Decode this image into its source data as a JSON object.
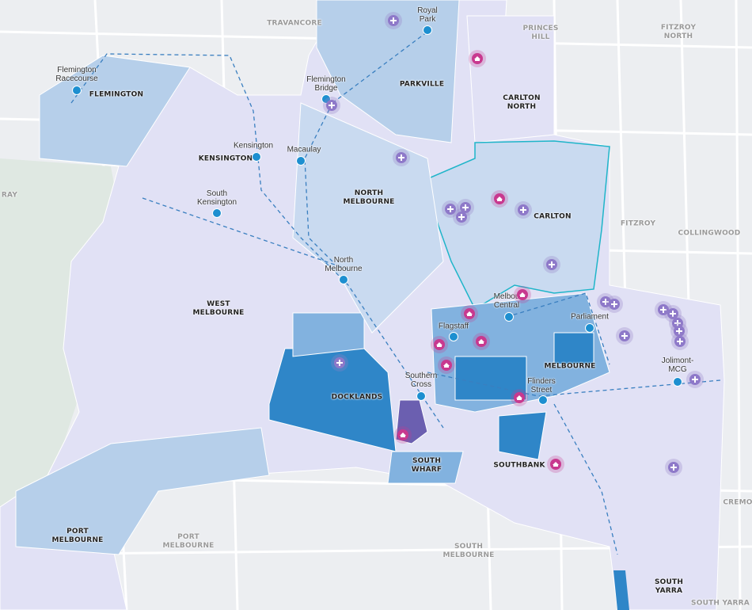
{
  "map": {
    "colors": {
      "base": "#eceef1",
      "road": "#ffffff",
      "park": "#dfe8e2",
      "lavender": "#e1e1f5",
      "light_blue": "#b6cfea",
      "mid_blue": "#82b2df",
      "dark_blue": "#2f86c8",
      "purple": "#6b5fb0",
      "selected_outline": "#1fb5c9",
      "rail": "#3a7fc0"
    },
    "suburbs": [
      {
        "name": "FLEMINGTON"
      },
      {
        "name": "KENSINGTON"
      },
      {
        "name": "NORTH MELBOURNE"
      },
      {
        "name": "PARKVILLE"
      },
      {
        "name": "CARLTON NORTH"
      },
      {
        "name": "CARLTON"
      },
      {
        "name": "WEST MELBOURNE"
      },
      {
        "name": "DOCKLANDS"
      },
      {
        "name": "SOUTH WHARF"
      },
      {
        "name": "SOUTHBANK"
      },
      {
        "name": "MELBOURNE"
      },
      {
        "name": "PORT MELBOURNE"
      },
      {
        "name": "SOUTH YARRA"
      }
    ],
    "background_suburbs": [
      {
        "name": "TRAVANCORE"
      },
      {
        "name": "PRINCES HILL"
      },
      {
        "name": "FITZROY NORTH"
      },
      {
        "name": "FITZROY"
      },
      {
        "name": "COLLINGWOOD"
      },
      {
        "name": "PORT MELBOURNE"
      },
      {
        "name": "SOUTH MELBOURNE"
      },
      {
        "name": "RAY"
      },
      {
        "name": "CREMO"
      },
      {
        "name": "SOUTH YARRA"
      }
    ],
    "stations": [
      {
        "name": "Flemington Racecourse"
      },
      {
        "name": "Flemington Bridge"
      },
      {
        "name": "Royal Park"
      },
      {
        "name": "Kensington"
      },
      {
        "name": "Macaulay"
      },
      {
        "name": "South Kensington"
      },
      {
        "name": "North Melbourne"
      },
      {
        "name": "Melbou Central"
      },
      {
        "name": "Flagstaff"
      },
      {
        "name": "Parliament"
      },
      {
        "name": "Southern Cross"
      },
      {
        "name": "Flinders Street"
      },
      {
        "name": "Jolimont-MCG"
      }
    ],
    "marker_types": {
      "hospital": "hospital-plus-icon",
      "education": "graduation-cap-icon",
      "station": "train-icon"
    }
  }
}
